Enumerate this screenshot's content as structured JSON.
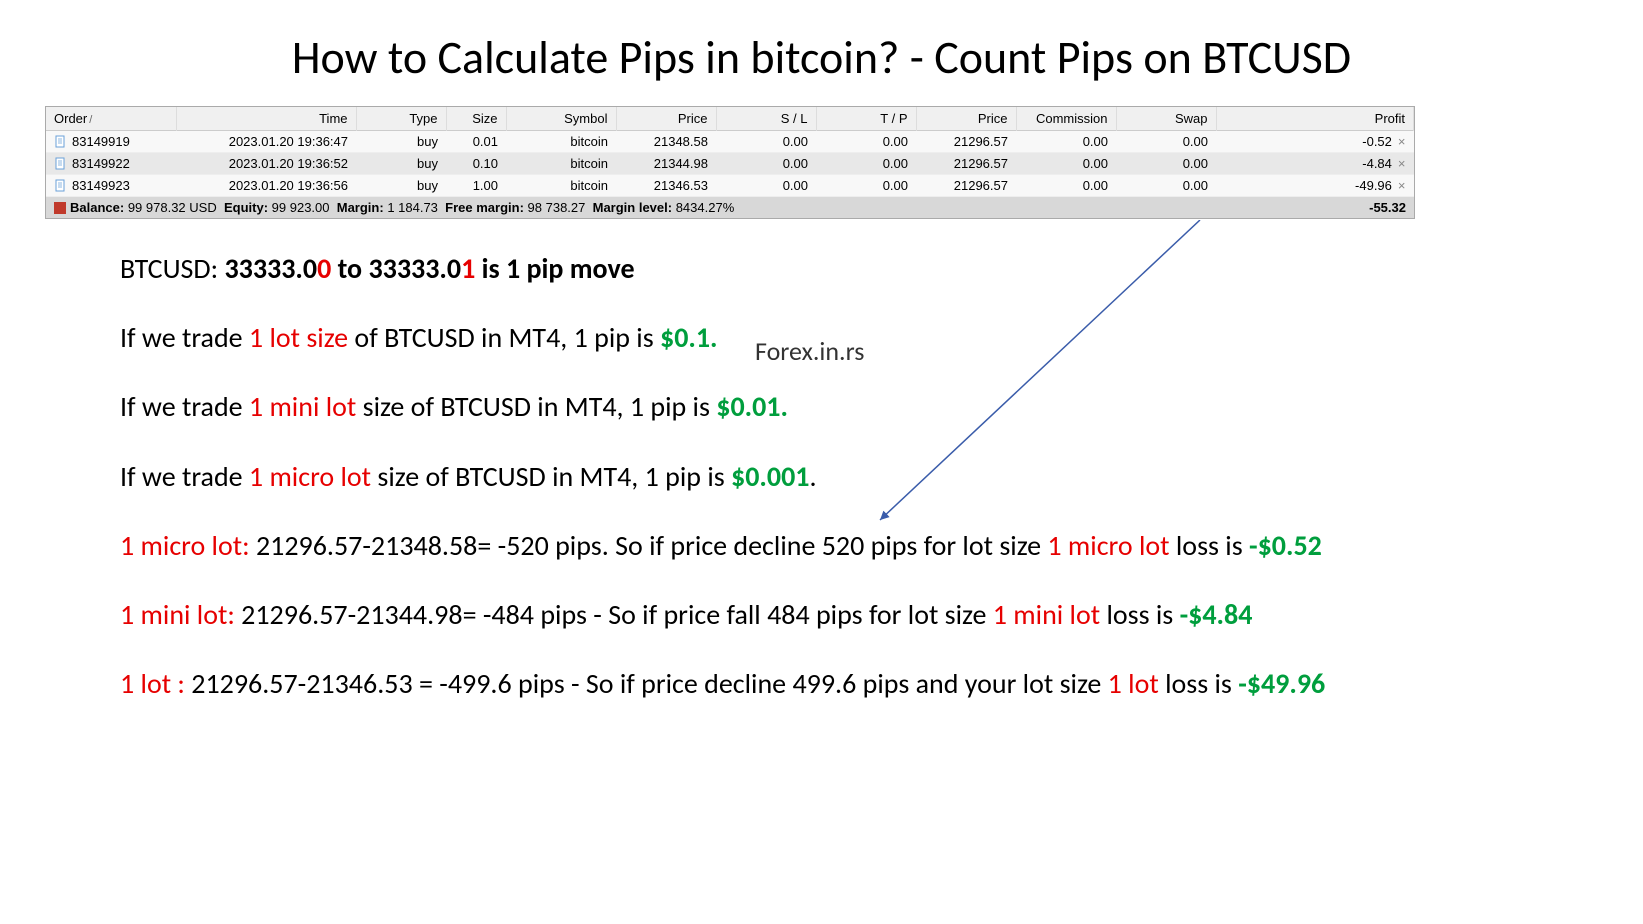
{
  "title": "How to Calculate Pips in bitcoin? - Count Pips on BTCUSD",
  "table": {
    "headers": [
      "Order",
      "Time",
      "Type",
      "Size",
      "Symbol",
      "Price",
      "S / L",
      "T / P",
      "Price",
      "Commission",
      "Swap",
      "Profit"
    ],
    "rows": [
      {
        "order": "83149919",
        "time": "2023.01.20 19:36:47",
        "type": "buy",
        "size": "0.01",
        "symbol": "bitcoin",
        "price": "21348.58",
        "sl": "0.00",
        "tp": "0.00",
        "price2": "21296.57",
        "commission": "0.00",
        "swap": "0.00",
        "profit": "-0.52"
      },
      {
        "order": "83149922",
        "time": "2023.01.20 19:36:52",
        "type": "buy",
        "size": "0.10",
        "symbol": "bitcoin",
        "price": "21344.98",
        "sl": "0.00",
        "tp": "0.00",
        "price2": "21296.57",
        "commission": "0.00",
        "swap": "0.00",
        "profit": "-4.84"
      },
      {
        "order": "83149923",
        "time": "2023.01.20 19:36:56",
        "type": "buy",
        "size": "1.00",
        "symbol": "bitcoin",
        "price": "21346.53",
        "sl": "0.00",
        "tp": "0.00",
        "price2": "21296.57",
        "commission": "0.00",
        "swap": "0.00",
        "profit": "-49.96"
      }
    ],
    "balance_label": "Balance:",
    "balance": "99 978.32 USD",
    "equity_label": "Equity:",
    "equity": "99 923.00",
    "margin_label": "Margin:",
    "margin": "1 184.73",
    "free_margin_label": "Free margin:",
    "free_margin": "98 738.27",
    "margin_level_label": "Margin level:",
    "margin_level": "8434.27%",
    "total_profit": "-55.32"
  },
  "pip_def": {
    "prefix": "BTCUSD:  ",
    "v0a": "33333.0",
    "v0b": "0",
    "mid": " to ",
    "v1a": "33333.0",
    "v1b": "1",
    "suffix": " is 1 pip move"
  },
  "watermark": "Forex.in.rs",
  "lines": {
    "l1": {
      "p1": "If we trade ",
      "lot": "1 lot size",
      "p2": " of BTCUSD in MT4, 1 pip is ",
      "val": "$0.1."
    },
    "l2": {
      "p1": "If we trade ",
      "lot": "1 mini lot",
      "p2": " size of BTCUSD in MT4, 1 pip is ",
      "val": "$0.01."
    },
    "l3": {
      "p1": "If we trade ",
      "lot": "1 micro lot",
      "p2": " size of BTCUSD in MT4, 1 pip is ",
      "val": "$0.001",
      "dot": "."
    },
    "c1": {
      "lot": "1 micro lot:",
      "calc": " 21296.57-21348.58=  -520 pips.  So if price decline 520 pips for lot size ",
      "lot2": "1 micro lot",
      "p2": " loss is ",
      "val": "-$0.52"
    },
    "c2": {
      "lot": "1 mini lot:",
      "calc": "  21296.57-21344.98= -484  pips - So if price fall 484 pips for lot size ",
      "lot2": "1 mini  lot",
      "p2": " loss is ",
      "val": "-$4.84"
    },
    "c3": {
      "lot": "1 lot :",
      "calc": " 21296.57-21346.53 = -499.6 pips - So if price decline 499.6 pips and your lot size ",
      "lot2": "1 lot",
      "p2": " loss is ",
      "val": "-$49.96"
    }
  },
  "colors": {
    "red": "#e60000",
    "green": "#009e3d",
    "arrow": "#3a5caa",
    "row_bg": "#f0f0f0"
  }
}
